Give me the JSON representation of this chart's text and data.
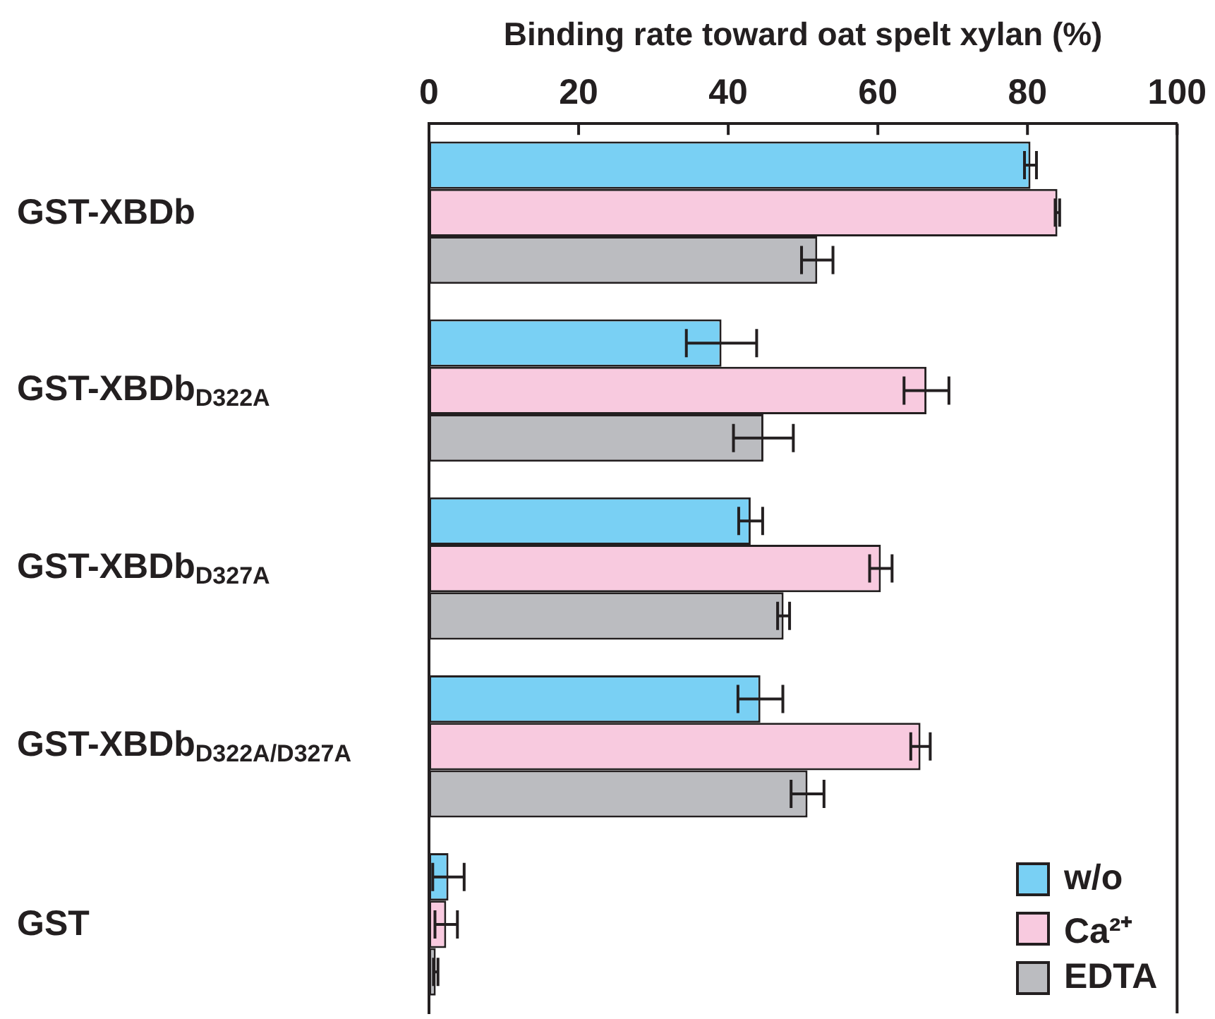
{
  "chart_data": {
    "type": "bar",
    "orientation": "horizontal",
    "xlabel": "Binding rate toward oat spelt xylan (%)",
    "categories": [
      "GST-XBDb",
      "GST-XBDb$_{D322A}$",
      "GST-XBDb$_{D327A}$",
      "GST-XBDb$_{D322A/D327A}$",
      "GST"
    ],
    "series": [
      {
        "name": "w/o",
        "color": "#79d0f4",
        "values": [
          80.4,
          39.1,
          43.0,
          44.3,
          2.6
        ],
        "errors": [
          0.8,
          4.7,
          1.6,
          3.0,
          2.1
        ]
      },
      {
        "name": "Ca²⁺",
        "color": "#f8cadf",
        "values": [
          84.0,
          66.5,
          60.4,
          65.7,
          2.3
        ],
        "errors": [
          0.3,
          3.0,
          1.5,
          1.3,
          1.5
        ]
      },
      {
        "name": "EDTA",
        "color": "#bbbcc0",
        "values": [
          51.9,
          44.7,
          47.4,
          50.6,
          0.9
        ],
        "errors": [
          2.1,
          4.0,
          0.8,
          2.2,
          0.3
        ]
      }
    ],
    "xlim": [
      0,
      100
    ],
    "xticks": [
      0,
      20,
      40,
      60,
      80,
      100
    ],
    "grid": false,
    "legend": "bottom right"
  }
}
